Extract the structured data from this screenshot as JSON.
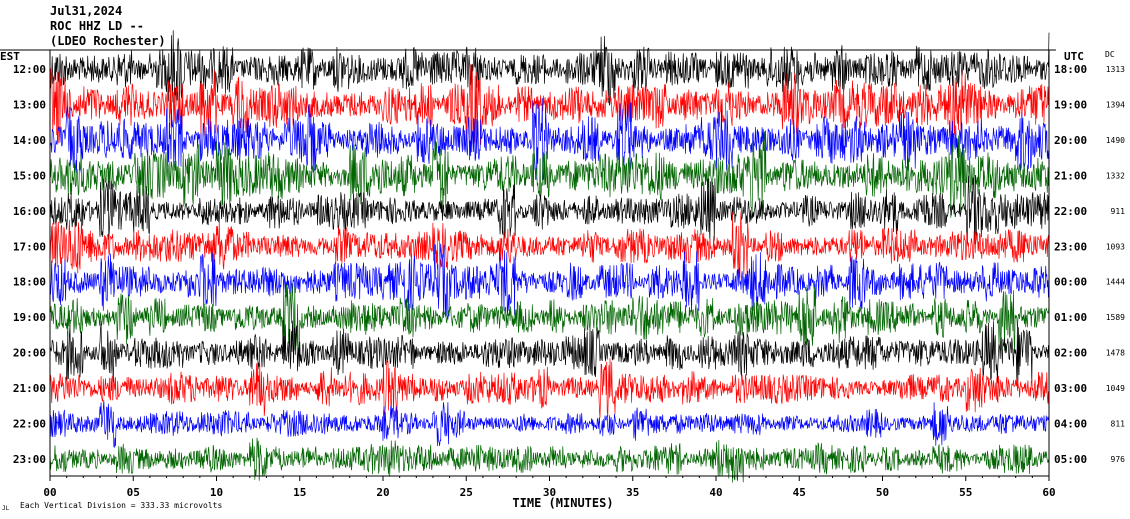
{
  "header": {
    "date": "Jul31,2024",
    "station": "ROC HHZ LD --",
    "location": "(LDEO Rochester)"
  },
  "chart_data": {
    "type": "line",
    "title": "",
    "left_axis_label": "EST",
    "right_axis_label": "UTC",
    "dc_label": "DC",
    "xlabel": "TIME (MINUTES)",
    "xlim": [
      0,
      60
    ],
    "x_ticks": [
      "00",
      "05",
      "10",
      "15",
      "20",
      "25",
      "30",
      "35",
      "40",
      "45",
      "50",
      "55",
      "60"
    ],
    "rows": [
      {
        "est": "12:00",
        "utc": "18:00",
        "dc": "1313",
        "color": "#000000",
        "amp": 1.0
      },
      {
        "est": "13:00",
        "utc": "19:00",
        "dc": "1394",
        "color": "#ff0000",
        "amp": 1.0
      },
      {
        "est": "14:00",
        "utc": "20:00",
        "dc": "1490",
        "color": "#0000ff",
        "amp": 1.0
      },
      {
        "est": "15:00",
        "utc": "21:00",
        "dc": "1332",
        "color": "#006400",
        "amp": 1.05
      },
      {
        "est": "16:00",
        "utc": "22:00",
        "dc": "911",
        "color": "#000000",
        "amp": 0.8
      },
      {
        "est": "17:00",
        "utc": "23:00",
        "dc": "1093",
        "color": "#ff0000",
        "amp": 0.8
      },
      {
        "est": "18:00",
        "utc": "00:00",
        "dc": "1444",
        "color": "#0000ff",
        "amp": 0.85
      },
      {
        "est": "19:00",
        "utc": "01:00",
        "dc": "1589",
        "color": "#006400",
        "amp": 0.85
      },
      {
        "est": "20:00",
        "utc": "02:00",
        "dc": "1478",
        "color": "#000000",
        "amp": 0.75
      },
      {
        "est": "21:00",
        "utc": "03:00",
        "dc": "1049",
        "color": "#ff0000",
        "amp": 0.7
      },
      {
        "est": "22:00",
        "utc": "04:00",
        "dc": "811",
        "color": "#0000ff",
        "amp": 0.6
      },
      {
        "est": "23:00",
        "utc": "05:00",
        "dc": "976",
        "color": "#006400",
        "amp": 0.65
      }
    ],
    "footer_note": "Each Vertical Division =  333.33 microvolts",
    "footer_mark": "JL",
    "grid": false
  }
}
